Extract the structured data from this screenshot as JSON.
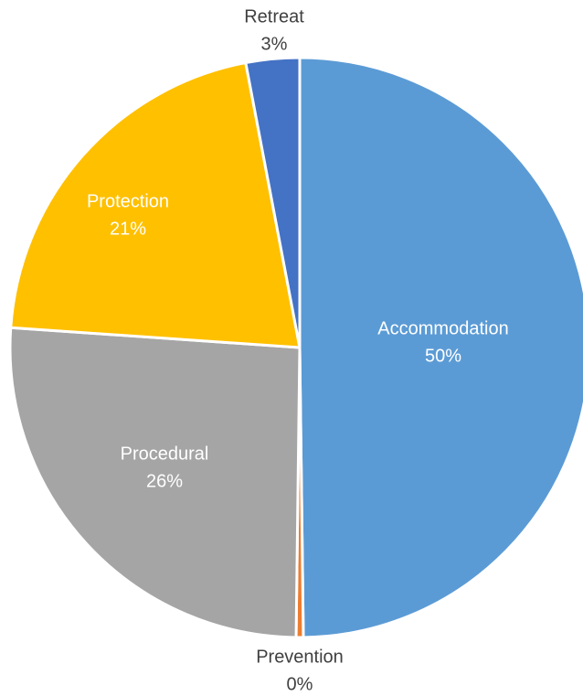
{
  "chart_data": {
    "type": "pie",
    "categories": [
      "Accommodation",
      "Prevention",
      "Procedural",
      "Protection",
      "Retreat"
    ],
    "values": [
      50,
      0.4,
      26,
      21,
      3
    ],
    "value_labels": [
      "50%",
      "0%",
      "26%",
      "21%",
      "3%"
    ],
    "colors": [
      "#5b9bd5",
      "#ed7d31",
      "#a5a5a5",
      "#ffc000",
      "#4472c4"
    ]
  }
}
